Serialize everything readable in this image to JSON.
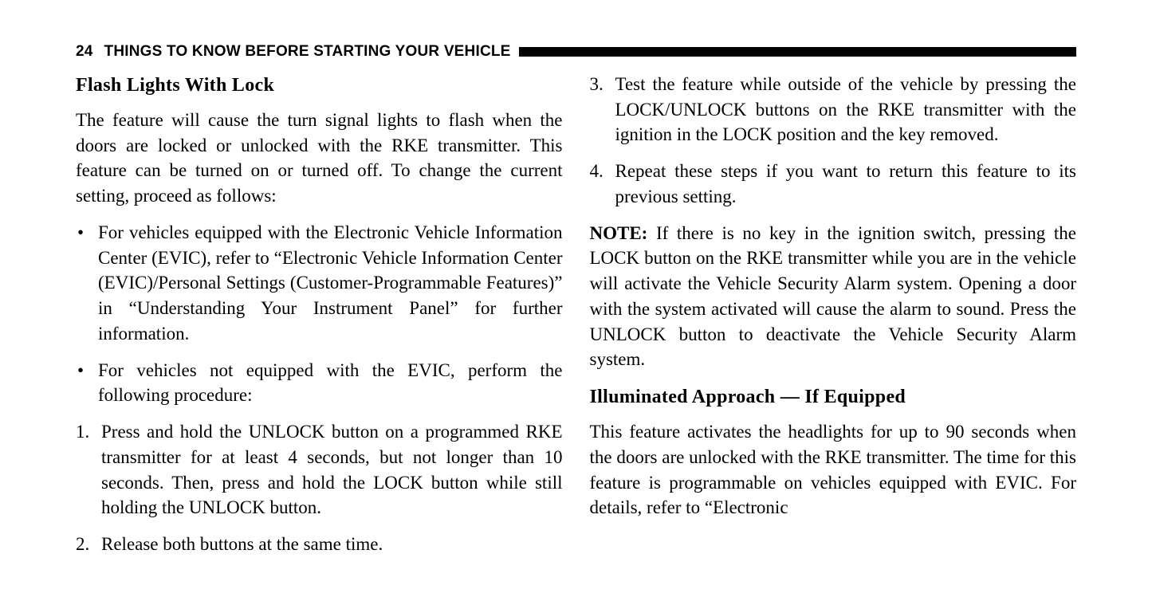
{
  "header": {
    "page_number": "24",
    "chapter_title": "THINGS TO KNOW BEFORE STARTING YOUR VEHICLE"
  },
  "left_column": {
    "section1": {
      "heading": "Flash Lights With Lock",
      "intro": "The feature will cause the turn signal lights to flash when the doors are locked or unlocked with the RKE transmitter. This feature can be turned on or turned off. To change the current setting, proceed as follows:",
      "bullets": [
        "For vehicles equipped with the Electronic Vehicle Information Center (EVIC), refer to “Electronic Vehicle Information Center (EVIC)/Personal Settings (Customer-Programmable Features)” in “Understanding Your Instrument Panel” for further information.",
        "For vehicles not equipped with the EVIC, perform the following procedure:"
      ],
      "steps": [
        "Press and hold the UNLOCK button on a programmed RKE transmitter for at least 4 seconds, but not longer than 10 seconds. Then, press and hold the LOCK button while still holding the UNLOCK button.",
        "Release both buttons at the same time."
      ]
    }
  },
  "right_column": {
    "steps_cont": [
      "Test the feature while outside of the vehicle by pressing the LOCK/UNLOCK buttons on the RKE transmitter with the ignition in the LOCK position and the key removed.",
      "Repeat these steps if you want to return this feature to its previous setting."
    ],
    "note": {
      "label": "NOTE:",
      "text": " If there is no key in the ignition switch, pressing the LOCK button on the RKE transmitter while you are in the vehicle will activate the Vehicle Security Alarm system. Opening a door with the system activated will cause the alarm to sound. Press the UNLOCK button to deactivate the Vehicle Security Alarm system."
    },
    "section2": {
      "heading": "Illuminated Approach — If Equipped",
      "para": "This feature activates the headlights for up to 90 seconds when the doors are unlocked with the RKE transmitter. The time for this feature is programmable on vehicles equipped with EVIC. For details, refer to “Electronic"
    }
  }
}
